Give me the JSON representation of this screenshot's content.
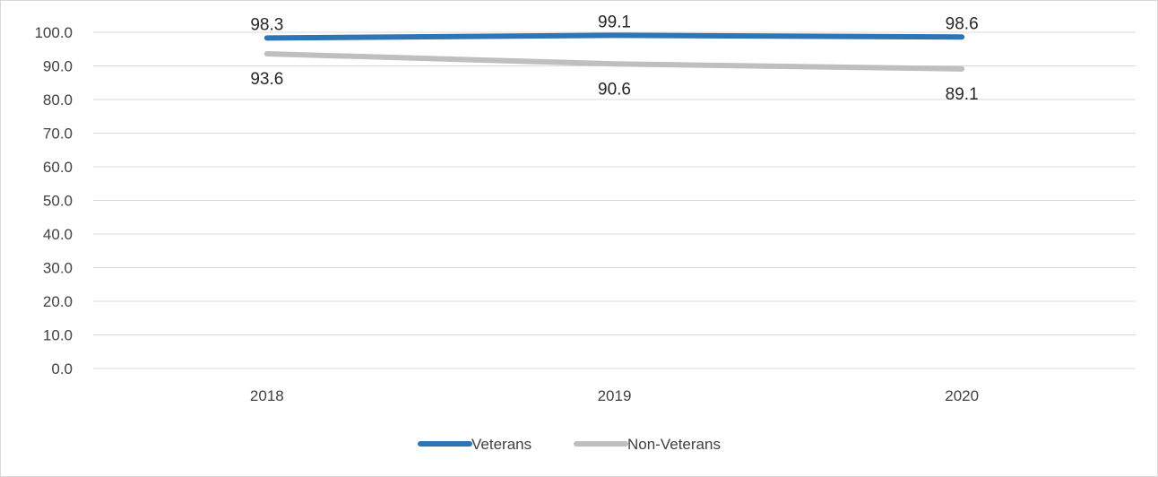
{
  "chart_data": {
    "type": "line",
    "title": "",
    "xlabel": "",
    "ylabel": "",
    "categories": [
      "2018",
      "2019",
      "2020"
    ],
    "ylim": [
      0,
      100
    ],
    "y_ticks": [
      "0.0",
      "10.0",
      "20.0",
      "30.0",
      "40.0",
      "50.0",
      "60.0",
      "70.0",
      "80.0",
      "90.0",
      "100.0"
    ],
    "grid": true,
    "legend_position": "bottom",
    "series": [
      {
        "name": "Veterans",
        "values": [
          98.3,
          99.1,
          98.6
        ],
        "labels": [
          "98.3",
          "99.1",
          "98.6"
        ],
        "color": "#2E75B6",
        "label_position": "above"
      },
      {
        "name": "Non-Veterans",
        "values": [
          93.6,
          90.6,
          89.1
        ],
        "labels": [
          "93.6",
          "90.6",
          "89.1"
        ],
        "color": "#BFBFBF",
        "label_position": "below"
      }
    ]
  }
}
